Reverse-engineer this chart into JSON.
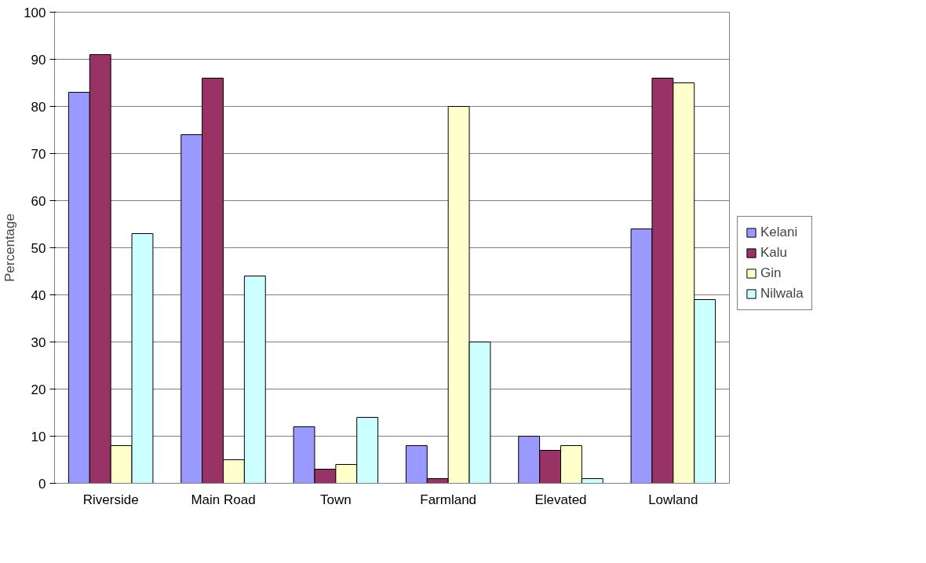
{
  "chart_data": {
    "type": "bar",
    "ylabel": "Percentage",
    "categories": [
      "Riverside",
      "Main Road",
      "Town",
      "Farmland",
      "Elevated",
      "Lowland"
    ],
    "series": [
      {
        "name": "Kelani",
        "color": "#9999ff",
        "values": [
          83,
          74,
          12,
          8,
          10,
          54
        ]
      },
      {
        "name": "Kalu",
        "color": "#993366",
        "values": [
          91,
          86,
          3,
          1,
          7,
          86
        ]
      },
      {
        "name": "Gin",
        "color": "#ffffcc",
        "values": [
          8,
          5,
          4,
          80,
          8,
          85
        ]
      },
      {
        "name": "Nilwala",
        "color": "#ccffff",
        "values": [
          53,
          44,
          14,
          30,
          1,
          39
        ]
      }
    ],
    "ylim": [
      0,
      100
    ],
    "yticks": [
      0,
      10,
      20,
      30,
      40,
      50,
      60,
      70,
      80,
      90,
      100
    ],
    "grid": "y",
    "legend": "right"
  }
}
